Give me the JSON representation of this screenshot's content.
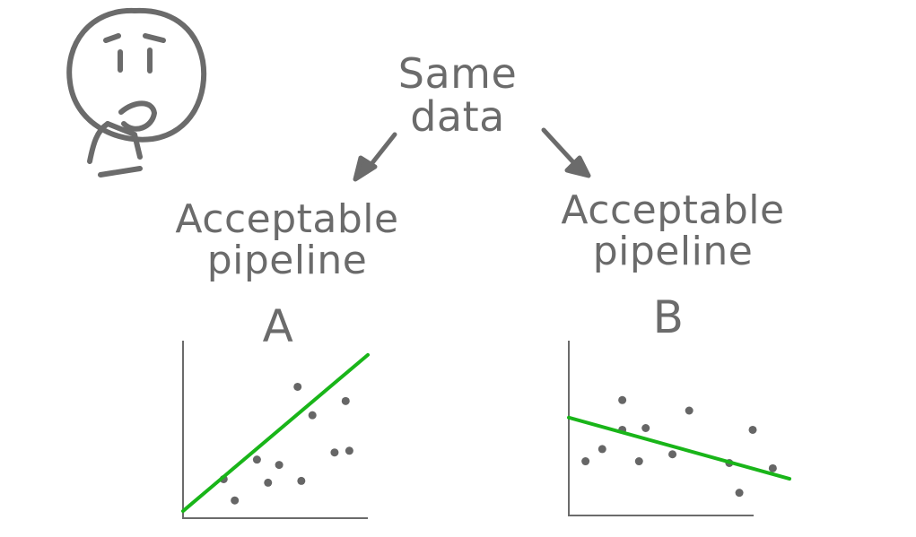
{
  "title_lines": [
    "Same",
    "data"
  ],
  "pipelines": [
    {
      "label_lines": [
        "Acceptable",
        "pipeline"
      ],
      "letter": "A"
    },
    {
      "label_lines": [
        "Acceptable",
        "pipeline"
      ],
      "letter": "B"
    }
  ],
  "colors": {
    "ink": "#6b6b6b",
    "fit_line": "#19b519",
    "point": "#666666"
  },
  "icons": [
    "thinking-face-icon",
    "arrow-left-down-icon",
    "arrow-right-down-icon"
  ],
  "chart_data": [
    {
      "type": "scatter",
      "series_trend": "positive",
      "x": [
        1.1,
        1.4,
        2.0,
        2.3,
        2.6,
        3.1,
        3.2,
        3.5,
        4.1,
        4.4,
        4.5
      ],
      "y": [
        2.2,
        1.0,
        3.3,
        2.0,
        3.0,
        7.4,
        2.1,
        5.8,
        3.7,
        6.6,
        3.8
      ],
      "fit": {
        "x": [
          0,
          5
        ],
        "y": [
          0.4,
          9.2
        ]
      },
      "xlim": [
        0,
        5
      ],
      "ylim": [
        0,
        10
      ]
    },
    {
      "type": "scatter",
      "series_trend": "negative",
      "x": [
        0.5,
        1.0,
        1.6,
        1.6,
        2.1,
        2.3,
        3.1,
        3.6,
        4.8,
        5.1,
        5.5,
        6.1
      ],
      "y": [
        3.1,
        3.8,
        6.6,
        4.9,
        3.1,
        5.0,
        3.5,
        6.0,
        3.0,
        1.3,
        4.9,
        2.7
      ],
      "fit": {
        "x": [
          0,
          6.6
        ],
        "y": [
          5.6,
          2.1
        ]
      },
      "xlim": [
        0,
        6.6
      ],
      "ylim": [
        0,
        10
      ]
    }
  ]
}
